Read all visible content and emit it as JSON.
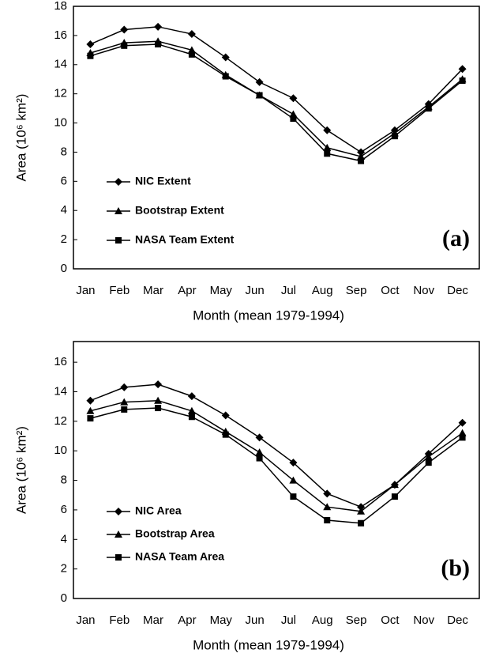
{
  "chart_data": [
    {
      "type": "line",
      "annotation": "(a)",
      "x_label": "Month (mean 1979-1994)",
      "y_label": "Area (10⁶ km²)",
      "categories": [
        "Jan",
        "Feb",
        "Mar",
        "Apr",
        "May",
        "Jun",
        "Jul",
        "Aug",
        "Sep",
        "Oct",
        "Nov",
        "Dec"
      ],
      "ylim": [
        0,
        18
      ],
      "yticks": [
        0,
        2,
        4,
        6,
        8,
        10,
        12,
        14,
        16,
        18
      ],
      "legend": "lower left",
      "series": [
        {
          "name": "NIC Extent",
          "color": "#000000",
          "marker": "diamond",
          "values": [
            15.4,
            16.4,
            16.6,
            16.1,
            14.5,
            12.8,
            11.7,
            9.5,
            8.0,
            9.5,
            11.3,
            13.7
          ]
        },
        {
          "name": "Bootstrap Extent",
          "color": "#000000",
          "marker": "triangle",
          "values": [
            14.8,
            15.5,
            15.6,
            15.0,
            13.3,
            11.9,
            10.6,
            8.3,
            7.7,
            9.3,
            11.1,
            13.0
          ]
        },
        {
          "name": "NASA Team Extent",
          "color": "#000000",
          "marker": "square",
          "values": [
            14.6,
            15.3,
            15.4,
            14.7,
            13.2,
            11.9,
            10.3,
            7.9,
            7.4,
            9.1,
            11.0,
            12.9
          ]
        }
      ]
    },
    {
      "type": "line",
      "annotation": "(b)",
      "x_label": "Month (mean 1979-1994)",
      "y_label": "Area (10⁶ km²)",
      "categories": [
        "Jan",
        "Feb",
        "Mar",
        "Apr",
        "May",
        "Jun",
        "Jul",
        "Aug",
        "Sep",
        "Oct",
        "Nov",
        "Dec"
      ],
      "ylim": [
        0,
        17.4
      ],
      "yticks": [
        0,
        2,
        4,
        6,
        8,
        10,
        12,
        14,
        16
      ],
      "legend": "lower left",
      "series": [
        {
          "name": "NIC Area",
          "color": "#000000",
          "marker": "diamond",
          "values": [
            13.4,
            14.3,
            14.5,
            13.7,
            12.4,
            10.9,
            9.2,
            7.1,
            6.2,
            7.7,
            9.8,
            11.9
          ]
        },
        {
          "name": "Bootstrap Area",
          "color": "#000000",
          "marker": "triangle",
          "values": [
            12.7,
            13.3,
            13.4,
            12.7,
            11.3,
            9.9,
            8.0,
            6.2,
            5.9,
            7.7,
            9.6,
            11.2
          ]
        },
        {
          "name": "NASA Team Area",
          "color": "#000000",
          "marker": "square",
          "values": [
            12.2,
            12.8,
            12.9,
            12.3,
            11.1,
            9.5,
            6.9,
            5.3,
            5.1,
            6.9,
            9.2,
            10.9
          ]
        }
      ]
    }
  ]
}
